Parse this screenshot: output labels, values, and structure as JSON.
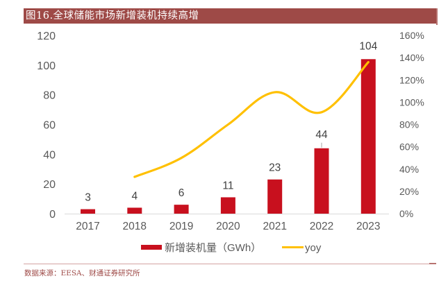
{
  "figure": {
    "title": "图16.全球储能市场新增装机持续高增",
    "source": "数据来源：EESA、财通证券研究所",
    "colors": {
      "title_bg": "#9E4A47",
      "bar": "#C8101E",
      "line": "#FFC000",
      "axis_text": "#595959",
      "label_text": "#404040"
    }
  },
  "chart_data": {
    "type": "bar",
    "title": "图16.全球储能市场新增装机持续高增",
    "categories": [
      "2017",
      "2018",
      "2019",
      "2020",
      "2021",
      "2022",
      "2023"
    ],
    "series": [
      {
        "name": "新增装机量（GWh）",
        "type": "bar",
        "axis": "left",
        "values": [
          3,
          4,
          6,
          11,
          23,
          44,
          104
        ],
        "data_labels": [
          "3",
          "4",
          "6",
          "11",
          "23",
          "44",
          "104"
        ]
      },
      {
        "name": "yoy",
        "type": "line",
        "axis": "right",
        "smooth": true,
        "values": [
          null,
          33,
          50,
          80,
          109,
          91,
          136
        ],
        "unit": "%"
      }
    ],
    "y_left": {
      "min": 0,
      "max": 120,
      "ticks": [
        "0",
        "20",
        "40",
        "60",
        "80",
        "100",
        "120"
      ],
      "tick_values": [
        0,
        20,
        40,
        60,
        80,
        100,
        120
      ]
    },
    "y_right": {
      "min": 0,
      "max": 160,
      "ticks": [
        "0%",
        "20%",
        "40%",
        "60%",
        "80%",
        "100%",
        "120%",
        "140%",
        "160%"
      ],
      "tick_values": [
        0,
        20,
        40,
        60,
        80,
        100,
        120,
        140,
        160
      ]
    },
    "xlabel": "",
    "ylabel": "",
    "grid": false,
    "legend": {
      "position": "bottom",
      "entries": [
        {
          "label": "新增装机量（GWh）",
          "kind": "bar"
        },
        {
          "label": "yoy",
          "kind": "line"
        }
      ]
    }
  }
}
